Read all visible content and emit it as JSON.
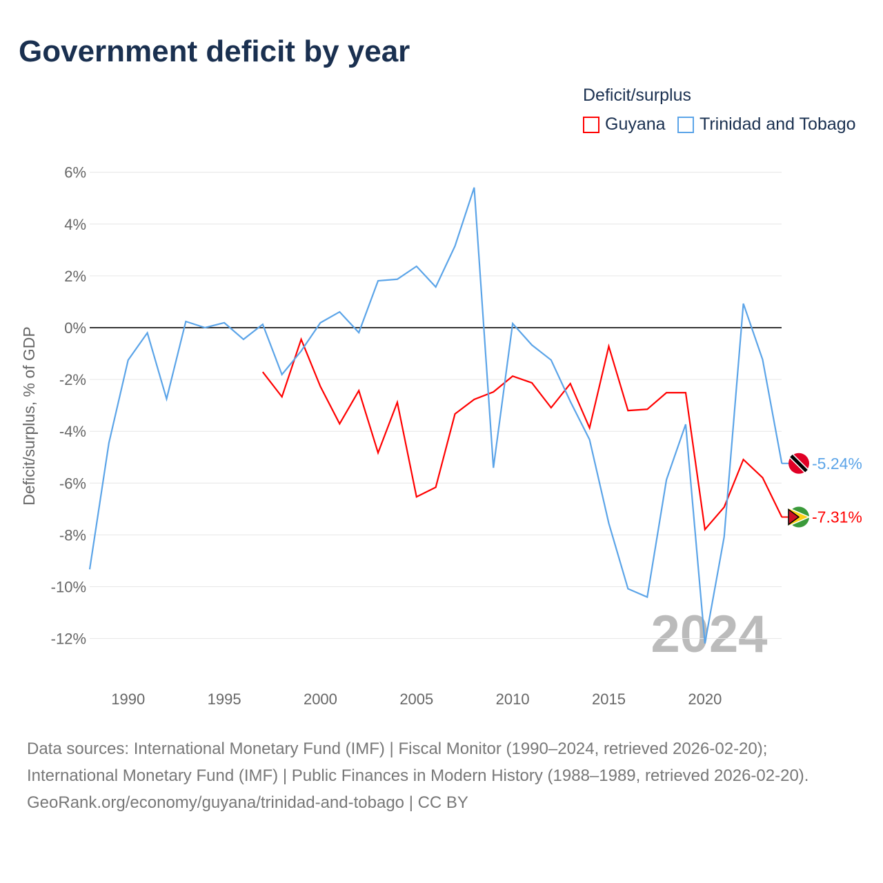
{
  "title": "Government deficit by year",
  "footer": {
    "sources": "Data sources: International Monetary Fund (IMF) | Fiscal Monitor (1990–2024, retrieved 2026-02-20); International Monetary Fund (IMF) | Public Finances in Modern History (1988–1989, retrieved 2026-02-20).",
    "credit": "GeoRank.org/economy/guyana/trinidad-and-tobago | CC BY"
  },
  "chart_data": {
    "type": "line",
    "title": "Government deficit by year",
    "ylabel": "Deficit/surplus, % of GDP",
    "xlabel": "",
    "legend_title": "Deficit/surplus",
    "legend_position": "top-right",
    "year_watermark": "2024",
    "xlim": [
      1988,
      2024
    ],
    "ylim": [
      -13.3,
      6.4
    ],
    "xticks": [
      1990,
      1995,
      2000,
      2005,
      2010,
      2015,
      2020
    ],
    "yticks": [
      6,
      4,
      2,
      0,
      -2,
      -4,
      -6,
      -8,
      -10,
      -12
    ],
    "ytick_labels": [
      "6%",
      "4%",
      "2%",
      "0%",
      "-2%",
      "-4%",
      "-6%",
      "-8%",
      "-10%",
      "-12%"
    ],
    "series": [
      {
        "name": "Guyana",
        "color": "#ff0000",
        "end_label": "-7.31%",
        "start": 1997,
        "values": [
          -1.71,
          -2.67,
          -0.45,
          -2.27,
          -3.71,
          -2.43,
          -4.83,
          -2.88,
          -6.53,
          -6.16,
          -3.33,
          -2.77,
          -2.48,
          -1.87,
          -2.13,
          -3.09,
          -2.16,
          -3.87,
          -0.72,
          -3.2,
          -3.15,
          -2.51,
          -2.51,
          -7.79,
          -6.93,
          -5.09,
          -5.79,
          -7.31
        ]
      },
      {
        "name": "Trinidad and Tobago",
        "color": "#5ba4e8",
        "end_label": "-5.24%",
        "start": 1988,
        "values": [
          -9.33,
          -4.45,
          -1.25,
          -0.2,
          -2.75,
          0.24,
          0,
          0.19,
          -0.45,
          0.13,
          -1.81,
          -0.9,
          0.19,
          0.61,
          -0.19,
          1.81,
          1.87,
          2.37,
          1.57,
          3.15,
          5.41,
          -5.41,
          0.16,
          -0.67,
          -1.25,
          -2.85,
          -4.32,
          -7.55,
          -10.08,
          -10.4,
          -5.87,
          -3.73,
          -12.19,
          -8.08,
          0.93,
          -1.23,
          -5.24
        ]
      }
    ]
  }
}
